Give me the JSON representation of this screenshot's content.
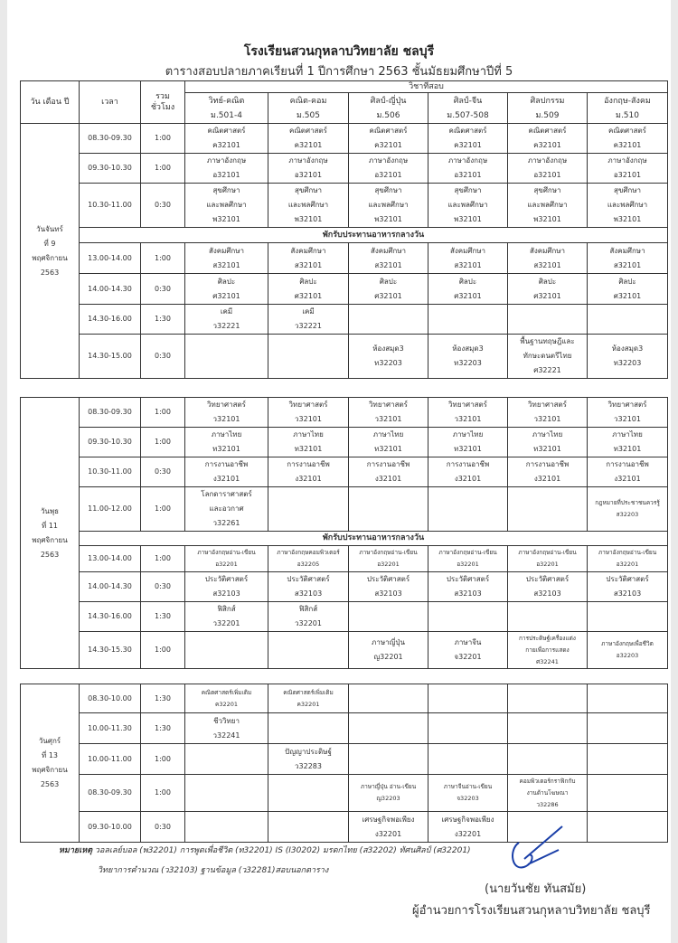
{
  "title": "โรงเรียนสวนกุหลาบวิทยาลัย  ชลบุรี",
  "subtitle": "ตารางสอบปลายภาคเรียนที่ 1 ปีการศึกษา 2563  ชั้นมัธยมศึกษาปีที่ 5",
  "header": {
    "day": "วัน เดือน ปี",
    "time": "เวลา",
    "hours": "รวม\nชั่วโมง",
    "subjects": "วิชาที่สอบ",
    "programs": [
      "วิทย์-คณิต\nม.501-4",
      "คณิต-คอม\nม.505",
      "ศิลป์-ญี่ปุ่น\nม.506",
      "ศิลป์-จีน\nม.507-508",
      "ศิลปกรรม\nม.509",
      "อังกฤษ-สังคม\nม.510"
    ]
  },
  "lunch_label": "พักรับประทานอาหารกลางวัน",
  "blocks": [
    {
      "day": "วันจันทร์\nที่ 9\nพฤศจิกายน\n2563",
      "rows": [
        {
          "time": "08.30-09.30",
          "hours": "1:00",
          "cells": [
            "คณิตศาสตร์\nค32101",
            "คณิตศาสตร์\nค32101",
            "คณิตศาสตร์\nค32101",
            "คณิตศาสตร์\nค32101",
            "คณิตศาสตร์\nค32101",
            "คณิตศาสตร์\nค32101"
          ]
        },
        {
          "time": "09.30-10.30",
          "hours": "1:00",
          "cells": [
            "ภาษาอังกฤษ\nอ32101",
            "ภาษาอังกฤษ\nอ32101",
            "ภาษาอังกฤษ\nอ32101",
            "ภาษาอังกฤษ\nอ32101",
            "ภาษาอังกฤษ\nอ32101",
            "ภาษาอังกฤษ\nอ32101"
          ]
        },
        {
          "time": "10.30-11.00",
          "hours": "0:30",
          "cells": [
            "สุขศึกษา\nและพลศึกษา\nพ32101",
            "สุขศึกษา\nและพลศึกษา\nพ32101",
            "สุขศึกษา\nและพลศึกษา\nพ32101",
            "สุขศึกษา\nและพลศึกษา\nพ32101",
            "สุขศึกษา\nและพลศึกษา\nพ32101",
            "สุขศึกษา\nและพลศึกษา\nพ32101"
          ]
        },
        {
          "lunch": true
        },
        {
          "time": "13.00-14.00",
          "hours": "1:00",
          "cells": [
            "สังคมศึกษา\nส32101",
            "สังคมศึกษา\nส32101",
            "สังคมศึกษา\nส32101",
            "สังคมศึกษา\nส32101",
            "สังคมศึกษา\nส32101",
            "สังคมศึกษา\nส32101"
          ]
        },
        {
          "time": "14.00-14.30",
          "hours": "0:30",
          "cells": [
            "ศิลปะ\nศ32101",
            "ศิลปะ\nศ32101",
            "ศิลปะ\nศ32101",
            "ศิลปะ\nศ32101",
            "ศิลปะ\nศ32101",
            "ศิลปะ\nศ32101"
          ]
        },
        {
          "time": "14.30-16.00",
          "hours": "1:30",
          "cells": [
            "เคมี\nว32221",
            "เคมี\nว32221",
            "",
            "",
            "",
            ""
          ]
        },
        {
          "time": "14.30-15.00",
          "hours": "0:30",
          "cells": [
            "",
            "",
            "ห้องสมุด3\nท32203",
            "ห้องสมุด3\nท32203",
            "พื้นฐานทฤษฎีและ\nทักษะดนตรีไทย\nศ32221",
            "ห้องสมุด3\nท32203"
          ]
        }
      ]
    },
    {
      "day": "วันพุธ\nที่ 11\nพฤศจิกายน\n2563",
      "rows": [
        {
          "time": "08.30-09.30",
          "hours": "1:00",
          "cells": [
            "วิทยาศาสตร์\nว32101",
            "วิทยาศาสตร์\nว32101",
            "วิทยาศาสตร์\nว32101",
            "วิทยาศาสตร์\nว32101",
            "วิทยาศาสตร์\nว32101",
            "วิทยาศาสตร์\nว32101"
          ]
        },
        {
          "time": "09.30-10.30",
          "hours": "1:00",
          "cells": [
            "ภาษาไทย\nท32101",
            "ภาษาไทย\nท32101",
            "ภาษาไทย\nท32101",
            "ภาษาไทย\nท32101",
            "ภาษาไทย\nท32101",
            "ภาษาไทย\nท32101"
          ]
        },
        {
          "time": "10.30-11.00",
          "hours": "0:30",
          "cells": [
            "การงานอาชีพ\nง32101",
            "การงานอาชีพ\nง32101",
            "การงานอาชีพ\nง32101",
            "การงานอาชีพ\nง32101",
            "การงานอาชีพ\nง32101",
            "การงานอาชีพ\nง32101"
          ]
        },
        {
          "time": "11.00-12.00",
          "hours": "1:00",
          "cells": [
            "โลกดาราศาสตร์\nและอวกาศ\nว32261",
            "",
            "",
            "",
            "",
            "กฎหมายที่ประชาชนควรรู้\nส32203"
          ]
        },
        {
          "lunch": true
        },
        {
          "time": "13.00-14.00",
          "hours": "1:00",
          "cells": [
            "ภาษาอังกฤษอ่าน-เขียน\nอ32201",
            "ภาษาอังกฤษคอมพิวเตอร์\nอ32205",
            "ภาษาอังกฤษอ่าน-เขียน\nอ32201",
            "ภาษาอังกฤษอ่าน-เขียน\nอ32201",
            "ภาษาอังกฤษอ่าน-เขียน\nอ32201",
            "ภาษาอังกฤษอ่าน-เขียน\nอ32201"
          ]
        },
        {
          "time": "14.00-14.30",
          "hours": "0:30",
          "cells": [
            "ประวัติศาสตร์\nส32103",
            "ประวัติศาสตร์\nส32103",
            "ประวัติศาสตร์\nส32103",
            "ประวัติศาสตร์\nส32103",
            "ประวัติศาสตร์\nส32103",
            "ประวัติศาสตร์\nส32103"
          ]
        },
        {
          "time": "14.30-16.00",
          "hours": "1:30",
          "cells": [
            "ฟิสิกส์\nว32201",
            "ฟิสิกส์\nว32201",
            "",
            "",
            "",
            ""
          ]
        },
        {
          "time": "14.30-15.30",
          "hours": "1:00",
          "cells": [
            "",
            "",
            "ภาษาญี่ปุ่น\nญ32201",
            "ภาษาจีน\nจ32201",
            "การประดิษฐ์เครื่องแต่ง\nกายเพื่อการแสดง\nศ32241",
            "ภาษาอังกฤษเพื่อชีวิต\nอ32203"
          ]
        }
      ]
    },
    {
      "day": "วันศุกร์\nที่ 13\nพฤศจิกายน\n2563",
      "rows": [
        {
          "time": "08.30-10.00",
          "hours": "1:30",
          "cells": [
            "คณิตศาสตร์เพิ่มเติม\nค32201",
            "คณิตศาสตร์เพิ่มเติม\nค32201",
            "",
            "",
            "",
            ""
          ]
        },
        {
          "time": "10.00-11.30",
          "hours": "1:30",
          "cells": [
            "ชีววิทยา\nว32241",
            "",
            "",
            "",
            "",
            ""
          ]
        },
        {
          "time": "10.00-11.00",
          "hours": "1:00",
          "cells": [
            "",
            "ปัญญาประดิษฐ์\nว32283",
            "",
            "",
            "",
            ""
          ]
        },
        {
          "time": "08.30-09.30",
          "hours": "1:00",
          "cells": [
            "",
            "",
            "ภาษาญี่ปุ่น อ่าน-เขียน\nญ32203",
            "ภาษาจีนอ่าน-เขียน\nจ32203",
            "คอมพิวเตอร์กราฟิกกับ\nงานด้านโฆษณา\nว32286",
            ""
          ]
        },
        {
          "time": "09.30-10.00",
          "hours": "0:30",
          "cells": [
            "",
            "",
            "เศรษฐกิจพอเพียง\nง32201",
            "เศรษฐกิจพอเพียง\nง32201",
            "",
            ""
          ]
        }
      ]
    }
  ],
  "note": {
    "label": "หมายเหตุ",
    "line1": "วอลเลย์บอล (พ32201)  การพูดเพื่อชีวิต (ท32201)  IS (I30202)  มรดกไทย (ส32202) ทัศนศิลป์ (ศ32201)",
    "line2": "วิทยาการคำนวณ (ว32103) ฐานข้อมูล (ว32281)สอบนอกตาราง"
  },
  "signature": {
    "name": "(นายวันชัย  ทันสมัย)",
    "position": "ผู้อำนวยการโรงเรียนสวนกุหลาบวิทยาลัย  ชลบุรี"
  }
}
